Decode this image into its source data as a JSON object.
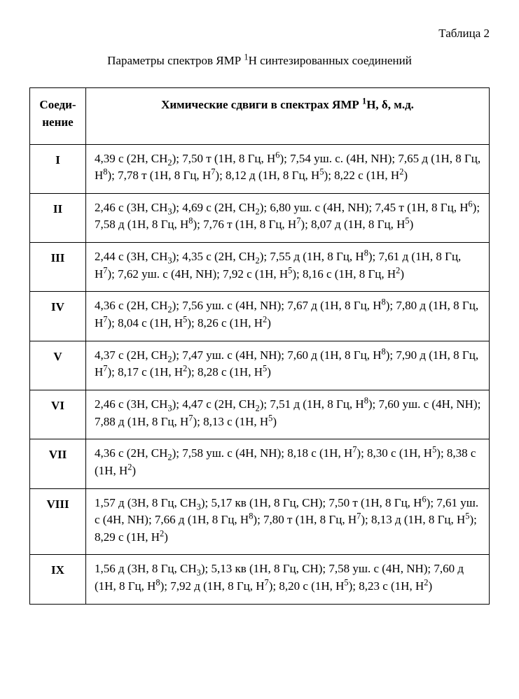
{
  "table_label": "Таблица 2",
  "caption_html": "Параметры спектров ЯМР <sup>1</sup>Н синтезированных соединений",
  "headers": {
    "compound_html": "Соеди-<br>нение",
    "shifts_html": "Химические сдвиги в спектрах ЯМР <sup>1</sup>Н, δ, м.д."
  },
  "rows": [
    {
      "compound": "I",
      "shifts_html": "4,39 с (2Н, CH<sub>2</sub>); 7,50 т (1Н, 8 Гц, H<sup>6</sup>); 7,54 уш. с. (4Н, NH); 7,65 д (1Н, 8 Гц, H<sup>8</sup>); 7,78 т (1Н, 8 Гц, H<sup>7</sup>); 8,12 д (1Н, 8 Гц, H<sup>5</sup>); 8,22 с (1Н, H<sup>2</sup>)"
    },
    {
      "compound": "II",
      "shifts_html": "2,46 с (3Н, CH<sub>3</sub>); 4,69 с (2Н, CH<sub>2</sub>); 6,80 уш. с (4Н, NH); 7,45 т (1Н, 8 Гц, H<sup>6</sup>); 7,58 д (1Н, 8 Гц, H<sup>8</sup>); 7,76 т (1Н, 8 Гц, H<sup>7</sup>); 8,07 д (1Н, 8 Гц, H<sup>5</sup>)"
    },
    {
      "compound": "III",
      "shifts_html": "2,44 с (3Н, CH<sub>3</sub>); 4,35 с (2Н, CH<sub>2</sub>); 7,55 д (1Н, 8 Гц, H<sup>8</sup>); 7,61 д (1Н, 8 Гц, H<sup>7</sup>); 7,62 уш. с (4Н, NH); 7,92 с (1Н, H<sup>5</sup>); 8,16 с (1Н, 8 Гц, H<sup>2</sup>)"
    },
    {
      "compound": "IV",
      "shifts_html": "4,36 с (2Н, CH<sub>2</sub>); 7,56 уш. с (4Н, NH); 7,67 д (1Н, 8 Гц, H<sup>8</sup>); 7,80 д (1Н, 8 Гц, H<sup>7</sup>); 8,04 с (1Н, H<sup>5</sup>); 8,26 с (1Н, H<sup>2</sup>)"
    },
    {
      "compound": "V",
      "shifts_html": "4,37 с (2Н, CH<sub>2</sub>); 7,47 уш. с (4Н, NH); 7,60 д (1Н, 8 Гц, H<sup>8</sup>); 7,90 д (1Н, 8 Гц, H<sup>7</sup>); 8,17 с (1Н, H<sup>2</sup>); 8,28 с (1Н, H<sup>5</sup>)"
    },
    {
      "compound": "VI",
      "shifts_html": "2,46 с (3Н, CH<sub>3</sub>); 4,47 с (2Н, CH<sub>2</sub>); 7,51 д (1Н, 8 Гц, H<sup>8</sup>); 7,60 уш. с (4Н, NH); 7,88 д (1Н, 8 Гц, H<sup>7</sup>); 8,13 с (1Н, H<sup>5</sup>)"
    },
    {
      "compound": "VII",
      "shifts_html": "4,36 с (2Н, CH<sub>2</sub>); 7,58 уш. с (4Н, NH); 8,18 с (1Н, H<sup>7</sup>); 8,30 с (1Н, H<sup>5</sup>); 8,38 с (1Н, H<sup>2</sup>)"
    },
    {
      "compound": "VIII",
      "shifts_html": "1,57 д (3Н, 8 Гц, CH<sub>3</sub>); 5,17 кв (1Н, 8 Гц, CH); 7,50 т (1Н, 8 Гц, H<sup>6</sup>); 7,61 уш. с (4Н, NH); 7,66 д (1Н, 8 Гц, H<sup>8</sup>); 7,80 т (1Н, 8 Гц, H<sup>7</sup>); 8,13 д (1Н, 8 Гц, H<sup>5</sup>); 8,29 с (1Н, H<sup>2</sup>)"
    },
    {
      "compound": "IX",
      "shifts_html": "1,56 д (3Н, 8 Гц, CH<sub>3</sub>); 5,13 кв (1Н, 8 Гц, CH); 7,58 уш. с (4Н, NH); 7,60 д (1Н, 8 Гц, H<sup>8</sup>); 7,92 д (1Н, 8 Гц, H<sup>7</sup>); 8,20 с (1Н, H<sup>5</sup>); 8,23 с (1Н, H<sup>2</sup>)"
    }
  ]
}
